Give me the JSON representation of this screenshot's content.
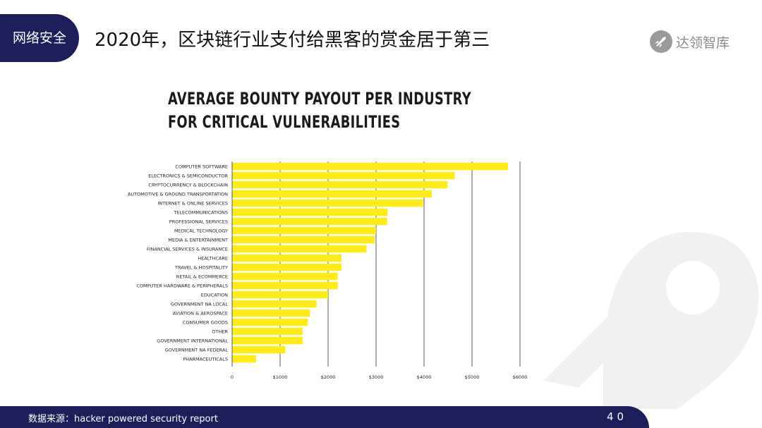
{
  "header": {
    "section_label": "网络安全",
    "title": "2020年，区块链行业支付给黑客的赏金居于第三",
    "brand_name": "达领智库"
  },
  "footer": {
    "source": "数据来源：hacker powered security report",
    "page_number": "40"
  },
  "colors": {
    "navy": "#1c1f5a",
    "bar": "#ffeb1a",
    "grid": "#333333",
    "watermark": "#f0f0f0"
  },
  "chart_data": {
    "type": "bar",
    "orientation": "horizontal",
    "title_lines": [
      "AVERAGE BOUNTY PAYOUT PER INDUSTRY",
      "FOR CRITICAL VULNERABILITIES"
    ],
    "categories": [
      "COMPUTER SOFTWARE",
      "ELECTRONICS & SEMICONDUCTOR",
      "CRYPTOCURRENCY & BLOCKCHAIN",
      "AUTOMOTIVE & GROUND TRANSPORTATION",
      "INTERNET & ONLINE SERVICES",
      "TELECOMMUNICATIONS",
      "PROFESSIONAL SERVICES",
      "MEDICAL TECHNOLOGY",
      "MEDIA & ENTERTAINMENT",
      "FINANCIAL SERVICES & INSURANCE",
      "HEALTHCARE",
      "TRAVEL & HOSPITALITY",
      "RETAIL & ECOMMERCE",
      "COMPUTER HARDWARE & PERIPHERALS",
      "EDUCATION",
      "GOVERNMENT NA LOCAL",
      "AVIATION & AEROSPACE",
      "CONSUMER GOODS",
      "OTHER",
      "GOVERNMENT INTERNATIONAL",
      "GOVERNMENT NA FEDERAL",
      "PHARMACEUTICALS"
    ],
    "values": [
      5750,
      4640,
      4490,
      4160,
      3980,
      3240,
      3230,
      3000,
      2970,
      2800,
      2280,
      2280,
      2200,
      2200,
      2000,
      1760,
      1620,
      1580,
      1470,
      1470,
      1110,
      500
    ],
    "xlim": [
      0,
      6000
    ],
    "xticks": [
      0,
      1000,
      2000,
      3000,
      4000,
      5000,
      6000
    ],
    "xtick_labels": [
      "0",
      "$1000",
      "$2000",
      "$3000",
      "$4000",
      "$5000",
      "$6000"
    ],
    "grid": "vertical"
  }
}
